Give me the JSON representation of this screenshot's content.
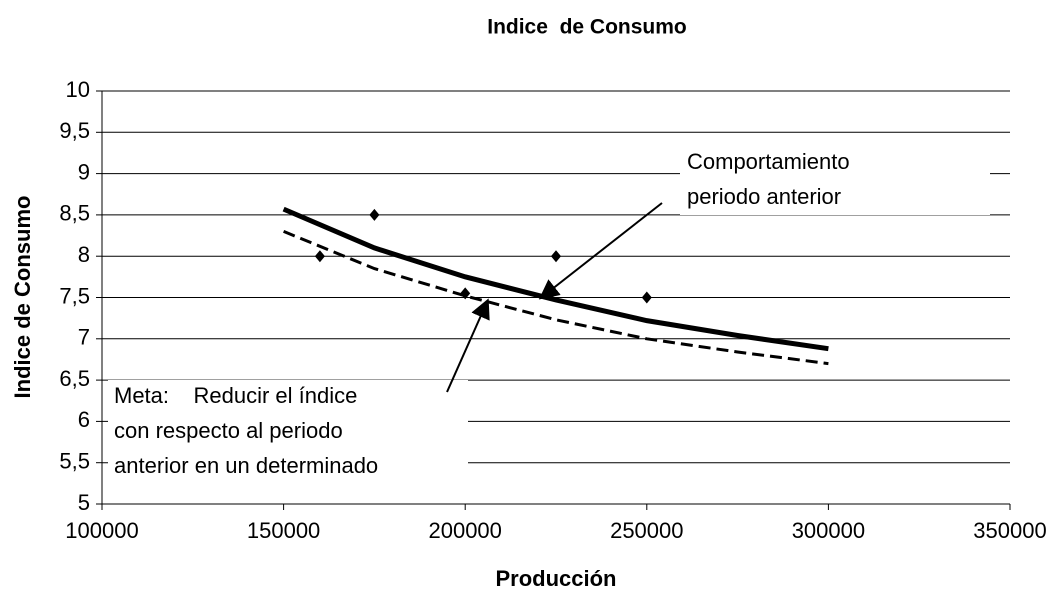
{
  "chart_data": {
    "type": "scatter",
    "title": "Indice  de Consumo",
    "x_label": "Producción",
    "y_label": "Indice de Consumo",
    "xlim": [
      100000,
      350000
    ],
    "xticks": [
      100000,
      150000,
      200000,
      250000,
      300000,
      350000
    ],
    "ylim": [
      5,
      10
    ],
    "yticks": [
      5,
      {
        "value": 5.5,
        "label": "5,5"
      },
      6,
      {
        "value": 6.5,
        "label": "6,5"
      },
      7,
      {
        "value": 7.5,
        "label": "7,5"
      },
      8,
      {
        "value": 8.5,
        "label": "8,5"
      },
      9,
      {
        "value": 9.5,
        "label": "9,5"
      },
      10
    ],
    "grid": true,
    "series": [
      {
        "color": "#000000",
        "marker": "diamond",
        "x": [
          160000,
          175000,
          200000,
          225000,
          250000
        ],
        "values": [
          8,
          8.5,
          7.55,
          8,
          7.5
        ]
      },
      {
        "color": "#000000",
        "line": "solid",
        "x": [
          150000,
          175000,
          200000,
          225000,
          250000,
          275000,
          300000
        ],
        "values": [
          8.57,
          8.1,
          7.75,
          7.47,
          7.22,
          7.04,
          6.88
        ]
      },
      {
        "color": "#000000",
        "line": "dashed",
        "x": [
          150000,
          175000,
          200000,
          225000,
          250000,
          275000,
          300000
        ],
        "values": [
          8.3,
          7.85,
          7.52,
          7.23,
          7.0,
          6.84,
          6.7
        ]
      }
    ],
    "annotations": [
      {
        "lines": [
          "Comportamiento",
          "periodo anterior"
        ]
      },
      {
        "lines": [
          "Meta:    Reducir el índice",
          "con respecto al periodo",
          "anterior en un determinado"
        ]
      }
    ]
  }
}
